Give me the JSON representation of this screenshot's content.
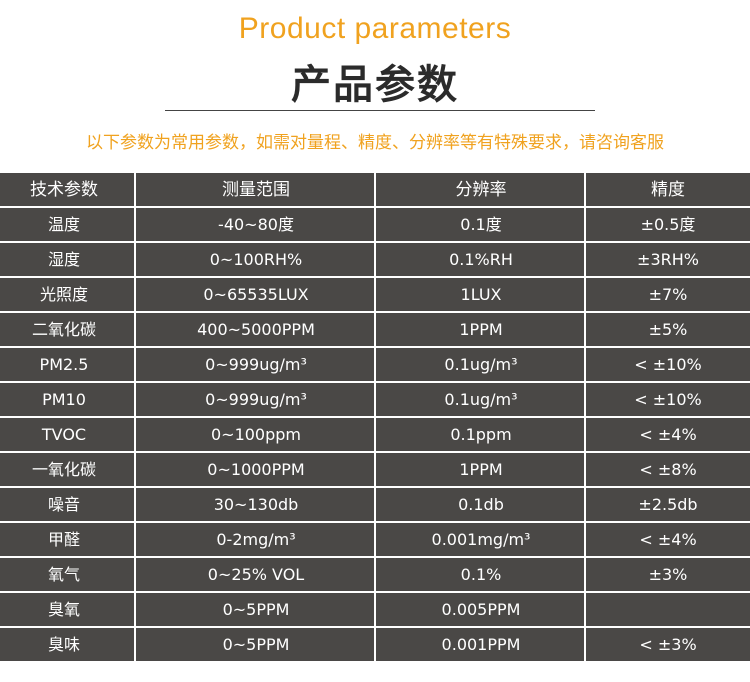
{
  "header": {
    "title_en": "Product parameters",
    "title_zh": "产品参数",
    "notice": "以下参数为常用参数，如需对量程、精度、分辨率等有特殊要求，请咨询客服"
  },
  "table": {
    "columns": [
      "技术参数",
      "测量范围",
      "分辨率",
      "精度"
    ],
    "rows": [
      [
        "温度",
        "-40~80度",
        "0.1度",
        "±0.5度"
      ],
      [
        "湿度",
        "0~100RH%",
        "0.1%RH",
        "±3RH%"
      ],
      [
        "光照度",
        "0~65535LUX",
        "1LUX",
        "±7%"
      ],
      [
        "二氧化碳",
        "400~5000PPM",
        "1PPM",
        "±5%"
      ],
      [
        "PM2.5",
        "0~999ug/m³",
        "0.1ug/m³",
        "< ±10%"
      ],
      [
        "PM10",
        "0~999ug/m³",
        "0.1ug/m³",
        "< ±10%"
      ],
      [
        "TVOC",
        "0~100ppm",
        "0.1ppm",
        "< ±4%"
      ],
      [
        "一氧化碳",
        "0~1000PPM",
        "1PPM",
        "< ±8%"
      ],
      [
        "噪音",
        "30~130db",
        "0.1db",
        "±2.5db"
      ],
      [
        "甲醛",
        "0-2mg/m³",
        "0.001mg/m³",
        "< ±4%"
      ],
      [
        "氧气",
        "0~25% VOL",
        "0.1%",
        "±3%"
      ],
      [
        "臭氧",
        "0~5PPM",
        "0.005PPM",
        ""
      ],
      [
        "臭味",
        "0~5PPM",
        "0.001PPM",
        "< ±3%"
      ]
    ]
  }
}
